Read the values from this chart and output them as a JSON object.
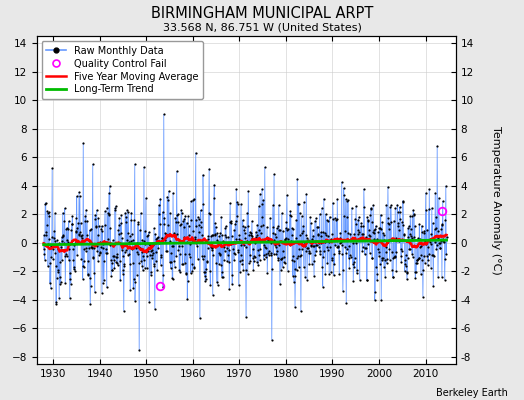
{
  "title": "BIRMINGHAM MUNICIPAL ARPT",
  "subtitle": "33.568 N, 86.751 W (United States)",
  "ylabel_right": "Temperature Anomaly (°C)",
  "credit": "Berkeley Earth",
  "xlim": [
    1926.5,
    2016.5
  ],
  "ylim": [
    -8.5,
    14.5
  ],
  "yticks": [
    -8,
    -6,
    -4,
    -2,
    0,
    2,
    4,
    6,
    8,
    10,
    12,
    14
  ],
  "xticks": [
    1930,
    1940,
    1950,
    1960,
    1970,
    1980,
    1990,
    2000,
    2010
  ],
  "raw_line_color": "#6699FF",
  "raw_dot_color": "#000000",
  "moving_avg_color": "#FF0000",
  "trend_color": "#00BB00",
  "qc_fail_color": "#FF00FF",
  "figure_bg": "#E8E8E8",
  "plot_bg": "#FFFFFF",
  "grid_color": "#CCCCCC",
  "seed": 12345,
  "start_year": 1928.0,
  "end_year": 2014.5,
  "n_months": 1038
}
